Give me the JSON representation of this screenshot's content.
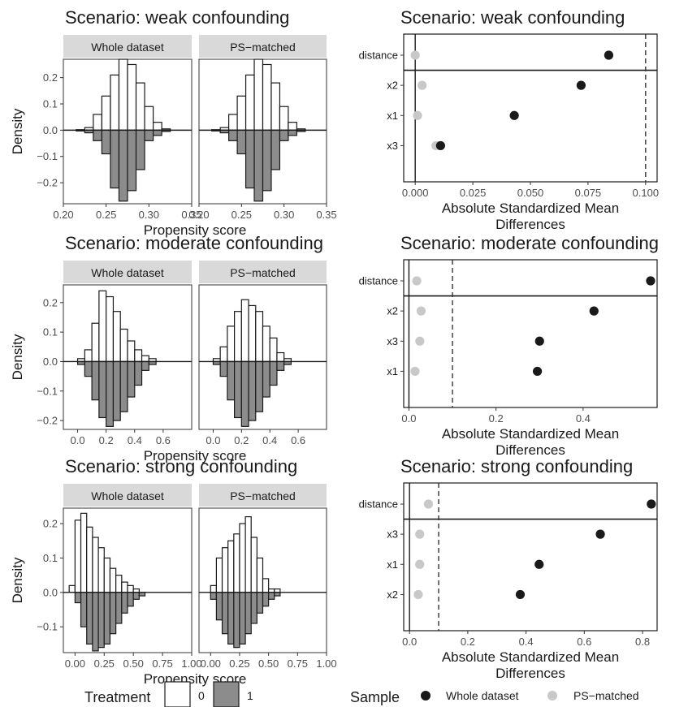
{
  "colors": {
    "treated_fill": "#8c8c8c",
    "control_fill": "#ffffff",
    "whole_dataset": "#1a1a1a",
    "ps_matched": "#c8c8c8",
    "strip_bg": "#d9d9d9"
  },
  "legends": {
    "treatment": {
      "title": "Treatment",
      "items": [
        "0",
        "1"
      ]
    },
    "sample": {
      "title": "Sample",
      "items": [
        "Whole dataset",
        "PS−matched"
      ]
    }
  },
  "chart_data": [
    {
      "type": "bar",
      "subtype": "mirrored-histogram",
      "title": "Scenario: weak confounding",
      "facets": [
        "Whole dataset",
        "PS−matched"
      ],
      "xlabel": "Propensity score",
      "ylabel": "Density",
      "xlim": [
        0.2,
        0.35
      ],
      "xticks": [
        "0.20",
        "0.25",
        "0.30",
        "0.35"
      ],
      "ylim": [
        -0.28,
        0.27
      ],
      "yticks": [
        "0.2",
        "0.1",
        "0.0",
        "−0.1",
        "−0.2"
      ],
      "ytick_values": [
        0.2,
        0.1,
        0.0,
        -0.1,
        -0.2
      ],
      "bin_starts": [
        0.205,
        0.215,
        0.225,
        0.235,
        0.245,
        0.255,
        0.265,
        0.275,
        0.285,
        0.295,
        0.305,
        0.315,
        0.325,
        0.335
      ],
      "bin_width": 0.01,
      "panels": [
        {
          "facet": "Whole dataset",
          "treatment_0": [
            0,
            0.002,
            0.01,
            0.06,
            0.13,
            0.21,
            0.27,
            0.25,
            0.18,
            0.09,
            0.03,
            0.005,
            0,
            0
          ],
          "treatment_1": [
            0,
            0.003,
            0.01,
            0.04,
            0.09,
            0.22,
            0.27,
            0.23,
            0.15,
            0.04,
            0.02,
            0.005,
            0,
            0
          ]
        },
        {
          "facet": "PS−matched",
          "treatment_0": [
            0,
            0.002,
            0.01,
            0.06,
            0.13,
            0.21,
            0.27,
            0.25,
            0.18,
            0.09,
            0.03,
            0.005,
            0,
            0
          ],
          "treatment_1": [
            0,
            0.003,
            0.01,
            0.04,
            0.09,
            0.22,
            0.27,
            0.23,
            0.15,
            0.04,
            0.02,
            0.005,
            0,
            0
          ]
        }
      ]
    },
    {
      "type": "scatter",
      "subtype": "love-plot",
      "title": "Scenario: weak confounding",
      "xlabel": "Absolute Standardized Mean\nDifferences",
      "xlim": [
        -0.005,
        0.105
      ],
      "xticks": [
        0,
        0.025,
        0.05,
        0.075,
        0.1
      ],
      "xtick_labels": [
        "0.000",
        "0.025",
        "0.050",
        "0.075",
        "0.100"
      ],
      "threshold": 0.1,
      "categories": [
        "distance",
        "x2",
        "x1",
        "x3"
      ],
      "series": [
        {
          "name": "Whole dataset",
          "values": [
            0.084,
            0.072,
            0.043,
            0.011
          ]
        },
        {
          "name": "PS−matched",
          "values": [
            0.0,
            0.003,
            0.001,
            0.009
          ]
        }
      ]
    },
    {
      "type": "bar",
      "subtype": "mirrored-histogram",
      "title": "Scenario: moderate confounding",
      "facets": [
        "Whole dataset",
        "PS−matched"
      ],
      "xlabel": "Propensity score",
      "ylabel": "Density",
      "xlim": [
        -0.1,
        0.8
      ],
      "xticks": [
        "0.0",
        "0.2",
        "0.4",
        "0.6"
      ],
      "xtick_values": [
        0,
        0.2,
        0.4,
        0.6
      ],
      "ylim": [
        -0.23,
        0.26
      ],
      "yticks": [
        "0.2",
        "0.1",
        "0.0",
        "−0.1",
        "−0.2"
      ],
      "ytick_values": [
        0.2,
        0.1,
        0.0,
        -0.1,
        -0.2
      ],
      "bin_starts": [
        -0.05,
        0.0,
        0.05,
        0.1,
        0.15,
        0.2,
        0.25,
        0.3,
        0.35,
        0.4,
        0.45,
        0.5,
        0.55,
        0.6,
        0.65,
        0.7
      ],
      "bin_width": 0.05,
      "panels": [
        {
          "facet": "Whole dataset",
          "treatment_0": [
            0.0,
            0.01,
            0.04,
            0.13,
            0.24,
            0.22,
            0.17,
            0.11,
            0.07,
            0.04,
            0.02,
            0.01,
            0.0,
            0,
            0,
            0
          ],
          "treatment_1": [
            0.0,
            0.01,
            0.05,
            0.13,
            0.19,
            0.22,
            0.2,
            0.17,
            0.12,
            0.08,
            0.03,
            0.01,
            0.0,
            0,
            0,
            0
          ]
        },
        {
          "facet": "PS−matched",
          "treatment_0": [
            0.0,
            0.01,
            0.05,
            0.12,
            0.17,
            0.21,
            0.19,
            0.17,
            0.12,
            0.08,
            0.03,
            0.01,
            0.0,
            0,
            0,
            0
          ],
          "treatment_1": [
            0.0,
            0.01,
            0.05,
            0.13,
            0.19,
            0.22,
            0.2,
            0.17,
            0.12,
            0.08,
            0.03,
            0.01,
            0.0,
            0,
            0,
            0
          ]
        }
      ]
    },
    {
      "type": "scatter",
      "subtype": "love-plot",
      "title": "Scenario: moderate confounding",
      "xlabel": "Absolute Standardized Mean\nDifferences",
      "xlim": [
        -0.012,
        0.57
      ],
      "xticks": [
        0,
        0.2,
        0.4
      ],
      "xtick_labels": [
        "0.0",
        "0.2",
        "0.4"
      ],
      "threshold": 0.1,
      "categories": [
        "distance",
        "x2",
        "x3",
        "x1"
      ],
      "series": [
        {
          "name": "Whole dataset",
          "values": [
            0.555,
            0.425,
            0.3,
            0.295
          ]
        },
        {
          "name": "PS−matched",
          "values": [
            0.018,
            0.028,
            0.025,
            0.014
          ]
        }
      ]
    },
    {
      "type": "bar",
      "subtype": "mirrored-histogram",
      "title": "Scenario: strong confounding",
      "facets": [
        "Whole dataset",
        "PS−matched"
      ],
      "xlabel": "Propensity score",
      "ylabel": "Density",
      "xlim": [
        -0.1,
        1.0
      ],
      "xticks": [
        "0.00",
        "0.25",
        "0.50",
        "0.75",
        "1.00"
      ],
      "xtick_values": [
        0,
        0.25,
        0.5,
        0.75,
        1.0
      ],
      "ylim": [
        -0.175,
        0.245
      ],
      "yticks": [
        "0.2",
        "0.1",
        "0.0",
        "−0.1"
      ],
      "ytick_values": [
        0.2,
        0.1,
        0.0,
        -0.1
      ],
      "bin_starts": [
        -0.05,
        0.0,
        0.05,
        0.1,
        0.15,
        0.2,
        0.25,
        0.3,
        0.35,
        0.4,
        0.45,
        0.5,
        0.55,
        0.6,
        0.65,
        0.7,
        0.75,
        0.8,
        0.85,
        0.9
      ],
      "bin_width": 0.05,
      "panels": [
        {
          "facet": "Whole dataset",
          "treatment_0": [
            0.02,
            0.21,
            0.23,
            0.19,
            0.16,
            0.13,
            0.1,
            0.07,
            0.05,
            0.03,
            0.02,
            0.01,
            0.0,
            0,
            0,
            0,
            0,
            0,
            0,
            0
          ],
          "treatment_1": [
            0.0,
            0.03,
            0.1,
            0.15,
            0.17,
            0.16,
            0.15,
            0.12,
            0.09,
            0.06,
            0.04,
            0.02,
            0.01,
            0.0,
            0,
            0,
            0,
            0,
            0,
            0
          ]
        },
        {
          "facet": "PS−matched",
          "treatment_0": [
            0.0,
            0.02,
            0.1,
            0.13,
            0.15,
            0.17,
            0.2,
            0.22,
            0.16,
            0.1,
            0.04,
            0.01,
            0.01,
            0.0,
            0,
            0,
            0,
            0,
            0,
            0
          ],
          "treatment_1": [
            0.0,
            0.02,
            0.08,
            0.12,
            0.15,
            0.16,
            0.15,
            0.12,
            0.09,
            0.06,
            0.04,
            0.02,
            0.01,
            0.0,
            0,
            0,
            0,
            0,
            0,
            0
          ]
        }
      ]
    },
    {
      "type": "scatter",
      "subtype": "love-plot",
      "title": "Scenario: strong confounding",
      "xlabel": "Absolute Standardized Mean\nDifferences",
      "xlim": [
        -0.02,
        0.85
      ],
      "xticks": [
        0,
        0.2,
        0.4,
        0.6,
        0.8
      ],
      "xtick_labels": [
        "0.0",
        "0.2",
        "0.4",
        "0.6",
        "0.8"
      ],
      "threshold": 0.1,
      "categories": [
        "distance",
        "x3",
        "x1",
        "x2"
      ],
      "series": [
        {
          "name": "Whole dataset",
          "values": [
            0.83,
            0.655,
            0.445,
            0.38
          ]
        },
        {
          "name": "PS−matched",
          "values": [
            0.065,
            0.035,
            0.035,
            0.03
          ]
        }
      ]
    }
  ]
}
